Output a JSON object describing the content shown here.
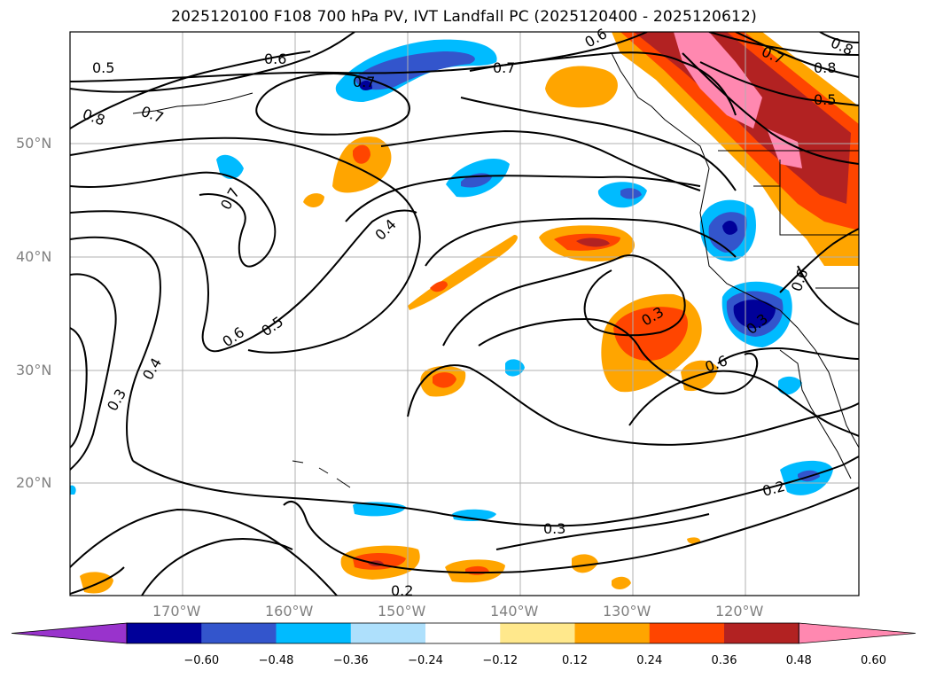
{
  "title": "2025120100 F108 700 hPa PV, IVT Landfall PC (2025120400 - 2025120612)",
  "latitude_labels": [
    "50°N",
    "40°N",
    "30°N",
    "20°N"
  ],
  "longitude_labels": [
    "170°W",
    "160°W",
    "150°W",
    "140°W",
    "130°W",
    "120°W"
  ],
  "contour_labels": [
    "0.5",
    "0.6",
    "0.7",
    "0.8",
    "0.7",
    "0.7",
    "0.8",
    "0.5",
    "0.7",
    "0.8",
    "0.6",
    "0.7",
    "0.4",
    "0.6",
    "0.5",
    "0.4",
    "0.3",
    "0.3",
    "0.6",
    "0.6",
    "0.3",
    "0.2",
    "0.2",
    "0.3"
  ],
  "colorbar": {
    "ticks": [
      "−0.60",
      "−0.48",
      "−0.36",
      "−0.24",
      "−0.12",
      "0.12",
      "0.24",
      "0.36",
      "0.48",
      "0.60"
    ],
    "colors": [
      "#9933cc",
      "#000099",
      "#3355cc",
      "#00bbff",
      "#aee0fc",
      "#ffffff",
      "#ffe88c",
      "#ffa500",
      "#ff4500",
      "#b22222",
      "#ff88b0"
    ]
  }
}
